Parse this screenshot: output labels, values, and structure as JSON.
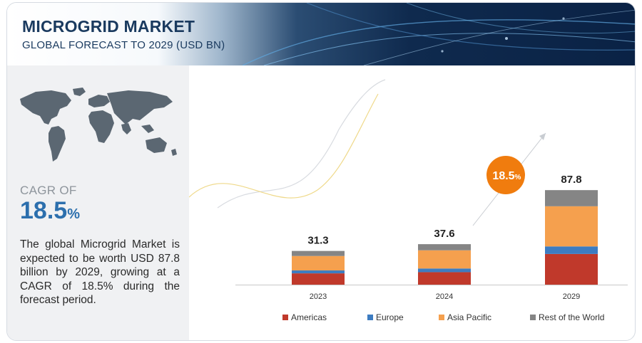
{
  "header": {
    "title": "MICROGRID MARKET",
    "subtitle": "GLOBAL FORECAST TO 2029 (USD BN)"
  },
  "summary": {
    "cagr_label": "CAGR OF",
    "cagr_value": "18.5",
    "cagr_unit": "%",
    "description": "The global Microgrid Market is expected to be worth USD 87.8 billion by 2029, growing at a CAGR of 18.5% during the forecast period."
  },
  "chart_data": {
    "type": "bar",
    "stacked": true,
    "categories": [
      "2023",
      "2024",
      "2029"
    ],
    "totals": [
      "31.3",
      "37.6",
      "87.8"
    ],
    "series": [
      {
        "name": "Americas",
        "color": "#c0392b",
        "values": [
          10.5,
          11.6,
          28.5
        ]
      },
      {
        "name": "Europe",
        "color": "#3d7cc1",
        "values": [
          2.7,
          3.4,
          7.0
        ]
      },
      {
        "name": "Asia Pacific",
        "color": "#f5a04e",
        "values": [
          13.4,
          16.9,
          37.3
        ]
      },
      {
        "name": "Rest of the World",
        "color": "#858585",
        "values": [
          4.7,
          5.7,
          15.0
        ]
      }
    ],
    "ylim": [
      0,
      100
    ],
    "grid": false,
    "legend": "bottom",
    "annotation": {
      "text": "18.5",
      "unit": "%",
      "color": "#f07c0e"
    }
  }
}
